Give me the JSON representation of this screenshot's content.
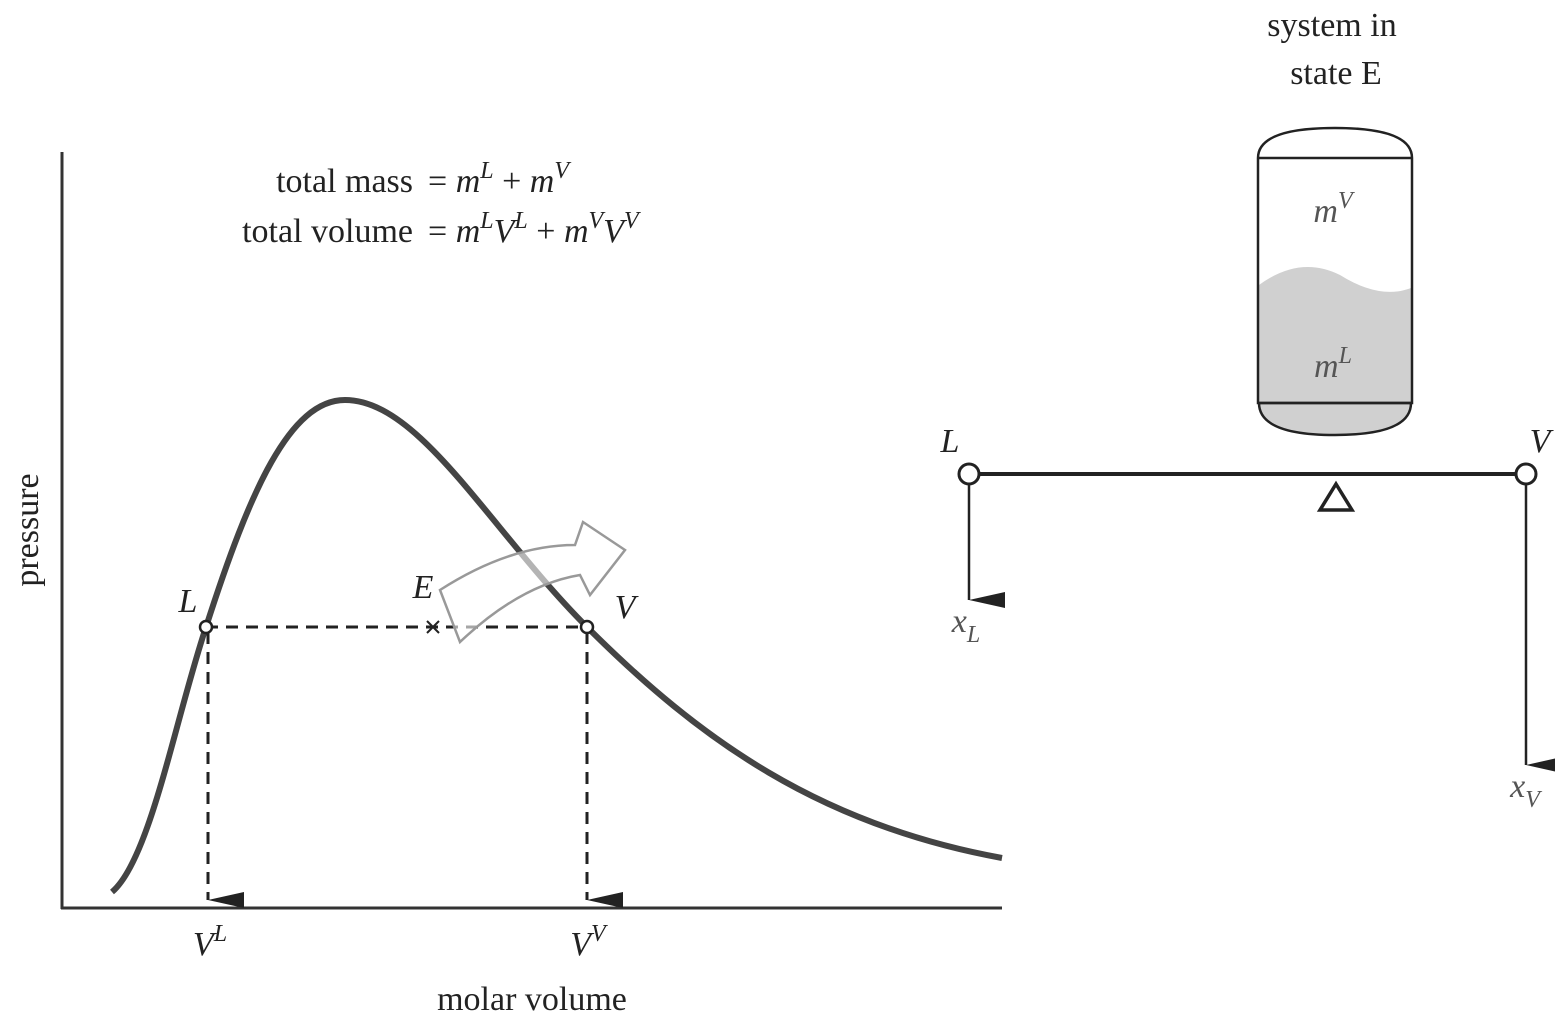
{
  "header": {
    "lines": [
      "system in",
      "state E"
    ]
  },
  "equations": [
    {
      "label": "total mass",
      "rhs": [
        {
          "text": "= "
        },
        {
          "var": "m"
        },
        {
          "sup": "L"
        },
        {
          "text": " + "
        },
        {
          "var": "m"
        },
        {
          "sup": "V"
        }
      ]
    },
    {
      "label": "total volume",
      "rhs": [
        {
          "text": "= "
        },
        {
          "var": "m"
        },
        {
          "sup": "L"
        },
        {
          "var": "V"
        },
        {
          "sup": "L"
        },
        {
          "text": " + "
        },
        {
          "var": "m"
        },
        {
          "sup": "V"
        },
        {
          "var": "V"
        },
        {
          "sup": "V"
        }
      ]
    }
  ],
  "graph": {
    "y_axis_label": "pressure",
    "x_axis_label": "molar volume",
    "point_labels": [
      "L",
      "E",
      "V"
    ],
    "x_labels": [
      [
        {
          "var": "V"
        },
        {
          "sup": "L"
        }
      ],
      [
        {
          "var": "V"
        },
        {
          "sup": "V"
        }
      ]
    ]
  },
  "tank": {
    "vapor": [
      {
        "var": "m"
      },
      {
        "sup": "V"
      }
    ],
    "liquid": [
      {
        "var": "m"
      },
      {
        "sup": "L"
      }
    ]
  },
  "lever": {
    "ends": [
      "L",
      "V"
    ],
    "outputs": [
      [
        {
          "var": "x"
        },
        {
          "sub": "L"
        }
      ],
      [
        {
          "var": "x"
        },
        {
          "sub": "V"
        }
      ]
    ]
  }
}
